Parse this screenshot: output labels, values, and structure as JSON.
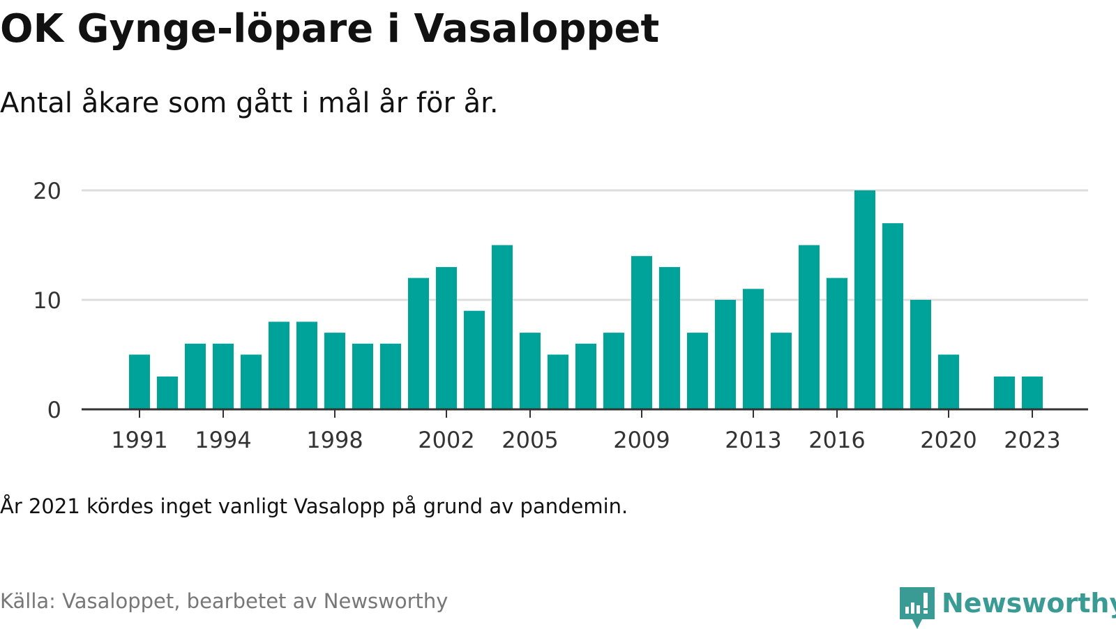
{
  "title": "OK Gynge-löpare i Vasaloppet",
  "subtitle": "Antal åkare som gått i mål år för år.",
  "note": "År 2021 kördes inget vanligt Vasalopp på grund av pandemin.",
  "source": "Källa: Vasaloppet, bearbetet av Newsworthy",
  "logo": {
    "text": "Newsworthy",
    "icon": "newsworthy-bar-chart-icon",
    "color": "#3a9b94"
  },
  "colors": {
    "bar": "#00a39a",
    "grid": "#dddddd",
    "axis": "#333333"
  },
  "chart_data": {
    "type": "bar",
    "title": "OK Gynge-löpare i Vasaloppet",
    "subtitle": "Antal åkare som gått i mål år för år.",
    "xlabel": "",
    "ylabel": "",
    "x": [
      1991,
      1992,
      1993,
      1994,
      1995,
      1996,
      1997,
      1998,
      1999,
      2000,
      2001,
      2002,
      2003,
      2004,
      2005,
      2006,
      2007,
      2008,
      2009,
      2010,
      2011,
      2012,
      2013,
      2014,
      2015,
      2016,
      2017,
      2018,
      2019,
      2020,
      2021,
      2022,
      2023
    ],
    "values": [
      5,
      3,
      6,
      6,
      5,
      8,
      8,
      7,
      6,
      6,
      12,
      13,
      9,
      15,
      7,
      5,
      6,
      7,
      14,
      13,
      7,
      10,
      11,
      7,
      15,
      12,
      20,
      17,
      10,
      5,
      null,
      3,
      3
    ],
    "x_ticks": [
      1991,
      1994,
      1998,
      2002,
      2005,
      2009,
      2013,
      2016,
      2020,
      2023
    ],
    "y_ticks": [
      0,
      10,
      20
    ],
    "ylim": [
      0,
      20
    ],
    "grid": true,
    "legend": "none"
  }
}
